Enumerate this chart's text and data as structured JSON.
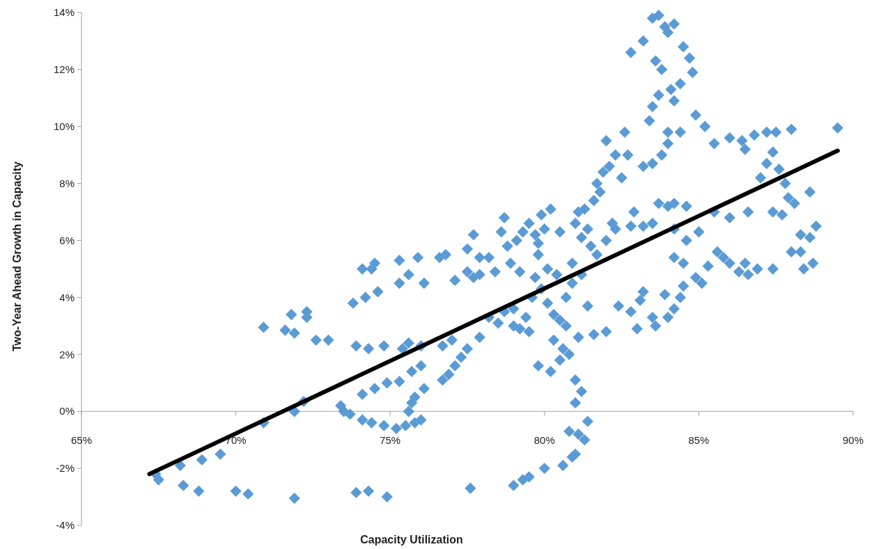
{
  "chart_data": {
    "type": "scatter",
    "xlabel": "Capacity Utilization",
    "ylabel": "Two-Year Ahead Growth in Capacity",
    "xlim": [
      65,
      90
    ],
    "ylim": [
      -4,
      14
    ],
    "xticks": [
      {
        "value": 65,
        "label": "65%"
      },
      {
        "value": 70,
        "label": "70%"
      },
      {
        "value": 75,
        "label": "75%"
      },
      {
        "value": 80,
        "label": "80%"
      },
      {
        "value": 85,
        "label": "85%"
      },
      {
        "value": 90,
        "label": "90%"
      }
    ],
    "yticks": [
      {
        "value": -4,
        "label": "-4%"
      },
      {
        "value": -2,
        "label": "-2%"
      },
      {
        "value": 0,
        "label": "0%"
      },
      {
        "value": 2,
        "label": "2%"
      },
      {
        "value": 4,
        "label": "4%"
      },
      {
        "value": 6,
        "label": "6%"
      },
      {
        "value": 8,
        "label": "8%"
      },
      {
        "value": 10,
        "label": "10%"
      },
      {
        "value": 12,
        "label": "12%"
      },
      {
        "value": 14,
        "label": "14%"
      }
    ],
    "grid": false,
    "marker": "diamond",
    "series": [
      {
        "color": "#5b9bd5",
        "x": [
          67.4,
          67.5,
          68.2,
          68.3,
          68.8,
          68.9,
          69.5,
          70.0,
          70.4,
          70.9,
          71.9,
          71.9,
          72.2,
          73.9,
          74.3,
          74.9,
          77.6,
          79.0,
          79.3,
          79.5,
          80.0,
          80.6,
          80.9,
          81.0,
          80.8,
          81.1,
          81.3,
          81.4,
          73.4,
          73.5,
          73.7,
          74.1,
          74.4,
          74.8,
          75.2,
          75.5,
          75.8,
          76.0,
          75.6,
          75.7,
          75.8,
          74.1,
          74.5,
          74.9,
          75.3,
          75.7,
          76.0,
          76.1,
          76.7,
          76.9,
          77.1,
          77.3,
          77.5,
          77.9,
          70.9,
          71.6,
          71.9,
          71.8,
          72.3,
          72.3,
          72.6,
          73.0,
          73.8,
          74.2,
          74.6,
          73.9,
          74.3,
          74.8,
          74.1,
          74.5,
          74.4,
          75.4,
          75.6,
          76.0,
          75.3,
          75.6,
          76.1,
          75.3,
          75.9,
          76.7,
          77.0,
          76.6,
          76.8,
          77.1,
          77.5,
          77.7,
          77.9,
          77.5,
          77.7,
          77.9,
          78.2,
          78.4,
          78.6,
          78.7,
          78.9,
          78.8,
          78.2,
          78.5,
          78.7,
          79.0,
          79.2,
          79.5,
          79.0,
          79.4,
          79.6,
          79.9,
          80.1,
          80.3,
          80.5,
          80.7,
          80.3,
          80.6,
          80.8,
          80.5,
          80.2,
          79.8,
          81.1,
          81.0,
          81.2,
          81.0,
          80.7,
          80.9,
          81.2,
          81.4,
          81.6,
          82.0,
          79.2,
          79.8,
          79.7,
          80.1,
          80.4,
          80.9,
          79.1,
          79.3,
          79.5,
          79.7,
          79.9,
          80.2,
          80.0,
          80.5,
          79.8,
          81.0,
          81.1,
          81.2,
          81.4,
          81.6,
          81.8,
          81.3,
          81.5,
          81.7,
          82.0,
          82.2,
          82.3,
          81.7,
          81.9,
          82.1,
          82.3,
          82.5,
          82.6,
          82.7,
          82.0,
          82.9,
          82.8,
          83.2,
          83.5,
          83.7,
          84.0,
          84.2,
          84.6,
          82.8,
          83.2,
          83.5,
          83.7,
          83.9,
          84.0,
          84.2,
          83.6,
          83.8,
          84.1,
          84.2,
          84.4,
          84.5,
          84.7,
          84.8,
          83.4,
          83.5,
          83.7,
          84.0,
          84.4,
          84.9,
          85.2,
          83.5,
          83.8,
          84.0,
          83.2,
          82.4,
          82.8,
          83.1,
          83.2,
          83.0,
          83.5,
          83.6,
          84.0,
          84.2,
          84.4,
          84.5,
          83.9,
          84.2,
          84.5,
          84.9,
          85.1,
          85.3,
          85.6,
          85.8,
          86.0,
          86.3,
          86.6,
          86.9,
          87.4,
          86.5,
          84.2,
          84.6,
          85.0,
          85.5,
          86.0,
          86.6,
          85.5,
          86.0,
          86.4,
          86.5,
          86.8,
          87.0,
          87.2,
          87.4,
          87.5,
          87.6,
          87.2,
          87.8,
          88.0,
          87.9,
          88.1,
          88.3,
          88.4,
          88.3,
          88.6,
          88.6,
          88.8,
          88.7,
          87.4,
          87.7,
          88.0,
          89.5
        ],
        "values": [
          -2.2,
          -2.4,
          -1.9,
          -2.6,
          -2.8,
          -1.7,
          -1.5,
          -2.8,
          -2.9,
          -0.4,
          -3.05,
          0.0,
          0.35,
          -2.85,
          -2.8,
          -3.0,
          -2.7,
          -2.6,
          -2.4,
          -2.3,
          -2.0,
          -1.9,
          -1.6,
          -1.5,
          -0.7,
          -0.8,
          -1.0,
          -0.35,
          0.2,
          0.0,
          -0.1,
          -0.3,
          -0.4,
          -0.5,
          -0.6,
          -0.5,
          -0.4,
          -0.3,
          0.0,
          0.3,
          0.5,
          0.6,
          0.8,
          1.0,
          1.05,
          1.4,
          1.6,
          0.8,
          1.1,
          1.3,
          1.6,
          1.9,
          2.2,
          2.6,
          2.95,
          2.85,
          2.75,
          3.4,
          3.5,
          3.3,
          2.5,
          2.5,
          3.8,
          4.0,
          4.2,
          2.3,
          2.2,
          2.3,
          5.0,
          5.2,
          5.0,
          2.2,
          2.4,
          2.3,
          4.5,
          4.8,
          4.5,
          5.3,
          5.4,
          2.3,
          2.5,
          5.4,
          5.5,
          4.6,
          4.9,
          4.7,
          4.8,
          5.7,
          6.2,
          5.4,
          5.4,
          4.9,
          6.3,
          6.8,
          5.2,
          5.8,
          3.3,
          3.1,
          3.5,
          3.6,
          2.9,
          2.8,
          3.0,
          3.3,
          4.0,
          4.3,
          3.8,
          3.4,
          3.2,
          3.0,
          2.5,
          2.2,
          2.0,
          1.8,
          1.4,
          1.6,
          2.6,
          1.1,
          0.7,
          0.3,
          4.0,
          4.5,
          4.8,
          3.7,
          2.7,
          2.8,
          4.9,
          5.5,
          4.7,
          5.0,
          4.8,
          5.2,
          6.0,
          6.3,
          6.6,
          6.2,
          6.9,
          7.1,
          6.4,
          6.3,
          5.9,
          6.6,
          7.0,
          6.1,
          6.4,
          7.4,
          7.7,
          7.1,
          5.8,
          5.5,
          6.0,
          6.6,
          6.4,
          8.0,
          8.4,
          8.6,
          9.0,
          8.2,
          9.8,
          9.0,
          9.5,
          7.0,
          6.5,
          6.5,
          6.6,
          7.3,
          7.2,
          7.3,
          7.2,
          12.6,
          13.0,
          13.8,
          13.9,
          13.5,
          13.3,
          13.6,
          12.3,
          12.0,
          11.3,
          10.9,
          11.5,
          12.8,
          12.4,
          11.9,
          10.2,
          10.7,
          11.1,
          9.8,
          9.8,
          10.4,
          10.0,
          8.7,
          9.0,
          9.4,
          8.6,
          3.7,
          3.5,
          3.9,
          4.2,
          2.9,
          3.3,
          3.0,
          3.3,
          3.6,
          4.0,
          4.4,
          4.1,
          5.4,
          5.2,
          4.7,
          4.5,
          5.1,
          5.6,
          5.4,
          5.2,
          4.9,
          4.8,
          5.0,
          5.0,
          5.2,
          6.4,
          6.0,
          6.3,
          7.0,
          6.8,
          7.0,
          9.4,
          9.6,
          9.5,
          9.2,
          9.7,
          8.2,
          8.7,
          9.1,
          9.8,
          8.5,
          9.8,
          8.0,
          9.9,
          7.5,
          7.3,
          6.2,
          5.0,
          5.6,
          7.7,
          6.1,
          6.5,
          5.2,
          7.0,
          6.9,
          5.6,
          9.95
        ]
      },
      {
        "type": "line",
        "color": "#000000",
        "marker": "none",
        "line_style": "solid",
        "x": [
          67.2,
          89.5
        ],
        "values": [
          -2.2,
          9.15
        ]
      }
    ]
  }
}
